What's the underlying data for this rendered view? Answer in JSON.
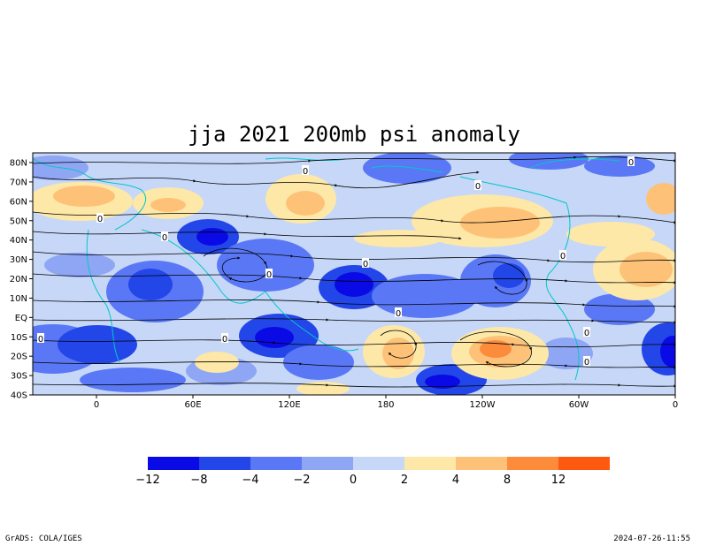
{
  "title": "jja 2021 200mb psi anomaly",
  "footer_left": "GrADS: COLA/IGES",
  "footer_right": "2024-07-26-11:55",
  "lat_labels": [
    "80N",
    "70N",
    "60N",
    "50N",
    "40N",
    "30N",
    "20N",
    "10N",
    "EQ",
    "10S",
    "20S",
    "30S",
    "40S"
  ],
  "lon_labels": [
    "0",
    "60E",
    "120E",
    "180",
    "120W",
    "60W",
    "0"
  ],
  "contour_labels": [
    "0",
    "0",
    "0",
    "0",
    "0",
    "0",
    "0",
    "0",
    "0",
    "0",
    "0",
    "0",
    "0"
  ],
  "legend": {
    "ticks": [
      "−12",
      "−8",
      "−4",
      "−2",
      "0",
      "2",
      "4",
      "8",
      "12"
    ],
    "colors": [
      "#0a0ae6",
      "#2346e8",
      "#5a78f5",
      "#8fa6f5",
      "#c6d7f8",
      "#fde8a8",
      "#fdc277",
      "#fc8c3c",
      "#fd5a0f"
    ]
  },
  "chart_data": {
    "type": "heatmap",
    "title": "jja 2021 200mb psi anomaly",
    "variable": "200mb psi anomaly",
    "season": "jja",
    "year": 2021,
    "x_axis": {
      "ticks": [
        "0",
        "60E",
        "120E",
        "180",
        "120W",
        "60W",
        "0"
      ],
      "range_deg": [
        -40,
        360
      ]
    },
    "y_axis": {
      "ticks": [
        "80N",
        "70N",
        "60N",
        "50N",
        "40N",
        "30N",
        "20N",
        "10N",
        "EQ",
        "10S",
        "20S",
        "30S",
        "40S"
      ],
      "range_deg": [
        -40,
        85
      ]
    },
    "colorbar_levels": [
      -12,
      -8,
      -4,
      -2,
      0,
      2,
      4,
      8,
      12
    ],
    "overlay": "streamlines"
  },
  "colors": {
    "background_base": "#c6d7f8",
    "coast": "#00c8c8",
    "frame": "#000000"
  }
}
